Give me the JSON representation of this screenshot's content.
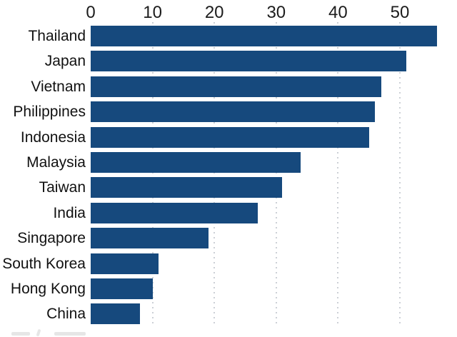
{
  "chart_data": {
    "type": "bar",
    "orientation": "horizontal",
    "title": "",
    "xlabel": "",
    "ylabel": "",
    "categories": [
      "Thailand",
      "Japan",
      "Vietnam",
      "Philippines",
      "Indonesia",
      "Malaysia",
      "Taiwan",
      "India",
      "Singapore",
      "South Korea",
      "Hong Kong",
      "China"
    ],
    "values": [
      56,
      51,
      47,
      46,
      45,
      34,
      31,
      27,
      19,
      11,
      10,
      8
    ],
    "x_ticks": [
      0,
      10,
      20,
      30,
      40,
      50
    ],
    "xlim": [
      0,
      59.2
    ],
    "axis_position": "top",
    "grid": "vertical-dotted",
    "legend": "none",
    "colors": {
      "bar": "#16497d",
      "gridline": "#ccd0d6",
      "tick_text": "#1c1c1c",
      "category_text": "#111111",
      "background": "#ffffff"
    }
  }
}
